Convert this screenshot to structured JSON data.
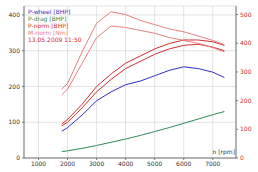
{
  "chart_data": {
    "type": "line",
    "x_label": "n [rpm]",
    "annotation": "13.05.2009 11:50",
    "legend": "upper left",
    "grid": true,
    "x": [
      1800,
      2000,
      2500,
      3000,
      3500,
      4000,
      4500,
      5000,
      5500,
      6000,
      6500,
      7000,
      7400
    ],
    "xlim": [
      500,
      7800
    ],
    "xticks": [
      1000,
      2000,
      3000,
      4000,
      5000,
      6000,
      7000
    ],
    "ylim": [
      0,
      425
    ],
    "yticks": [
      0,
      100,
      200,
      300,
      400
    ],
    "y2lim": [
      0,
      530
    ],
    "y2ticks": [
      0,
      100,
      200,
      300,
      400,
      500
    ],
    "series": [
      {
        "name": "P-wheel [BHP]",
        "color": "#2f2fc8",
        "values": [
          75,
          85,
          120,
          160,
          185,
          205,
          215,
          230,
          245,
          255,
          250,
          240,
          225
        ]
      },
      {
        "name": "P-drag [BHP]",
        "color": "#2e8b57",
        "values": [
          18,
          20,
          27,
          35,
          44,
          53,
          63,
          74,
          85,
          97,
          109,
          121,
          130
        ]
      },
      {
        "name": "P-norm [BHP]",
        "color": "#d03030",
        "values": [
          95,
          108,
          150,
          200,
          235,
          265,
          285,
          305,
          320,
          330,
          330,
          325,
          315
        ]
      },
      {
        "name": "P-norm [BHP]",
        "color": "#d03030",
        "values": [
          90,
          100,
          140,
          185,
          220,
          250,
          270,
          290,
          305,
          315,
          318,
          310,
          300
        ]
      },
      {
        "name": "M-norm [Nm]",
        "color": "#e88080",
        "axis": "y2",
        "values": [
          240,
          260,
          370,
          470,
          510,
          500,
          480,
          465,
          450,
          440,
          425,
          410,
          395
        ]
      },
      {
        "name": "M-norm [Nm]",
        "color": "#e88080",
        "axis": "y2",
        "values": [
          220,
          240,
          330,
          420,
          460,
          455,
          445,
          435,
          420,
          410,
          400,
          385,
          370
        ]
      }
    ]
  }
}
